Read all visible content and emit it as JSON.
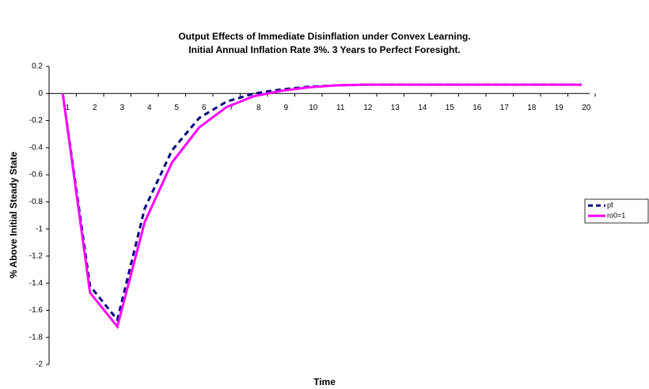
{
  "chart_data": {
    "type": "line",
    "title": "Output Effects of Immediate Disinflation under Convex Learning.",
    "subtitle": "Initial Annual Inflation Rate 3%. 3 Years to Perfect Foresight.",
    "x_label": "Time",
    "y_label": "% Above Initial Steady State",
    "categories": [
      "1",
      "2",
      "3",
      "4",
      "5",
      "6",
      "7",
      "8",
      "9",
      "10",
      "11",
      "12",
      "13",
      "14",
      "15",
      "16",
      "17",
      "18",
      "19",
      "20"
    ],
    "series": [
      {
        "name": "pf",
        "color": "#000080",
        "dash": true,
        "values": [
          0,
          -1.42,
          -1.67,
          -0.85,
          -0.42,
          -0.18,
          -0.06,
          0.0,
          0.03,
          0.05,
          0.06,
          0.065,
          0.065,
          0.065,
          0.065,
          0.065,
          0.065,
          0.065,
          0.065,
          0.065
        ]
      },
      {
        "name": "ro0=1",
        "color": "#ff00ff",
        "dash": false,
        "values": [
          0,
          -1.47,
          -1.72,
          -0.95,
          -0.51,
          -0.25,
          -0.1,
          -0.02,
          0.02,
          0.045,
          0.06,
          0.065,
          0.065,
          0.065,
          0.065,
          0.065,
          0.065,
          0.065,
          0.065,
          0.065
        ]
      }
    ],
    "ylim": [
      -2,
      0.2
    ],
    "yticks": [
      0.2,
      0,
      -0.2,
      -0.4,
      -0.6,
      -0.8,
      -1,
      -1.2,
      -1.4,
      -1.6,
      -1.8,
      -2
    ],
    "grid": false,
    "legend": "right"
  }
}
